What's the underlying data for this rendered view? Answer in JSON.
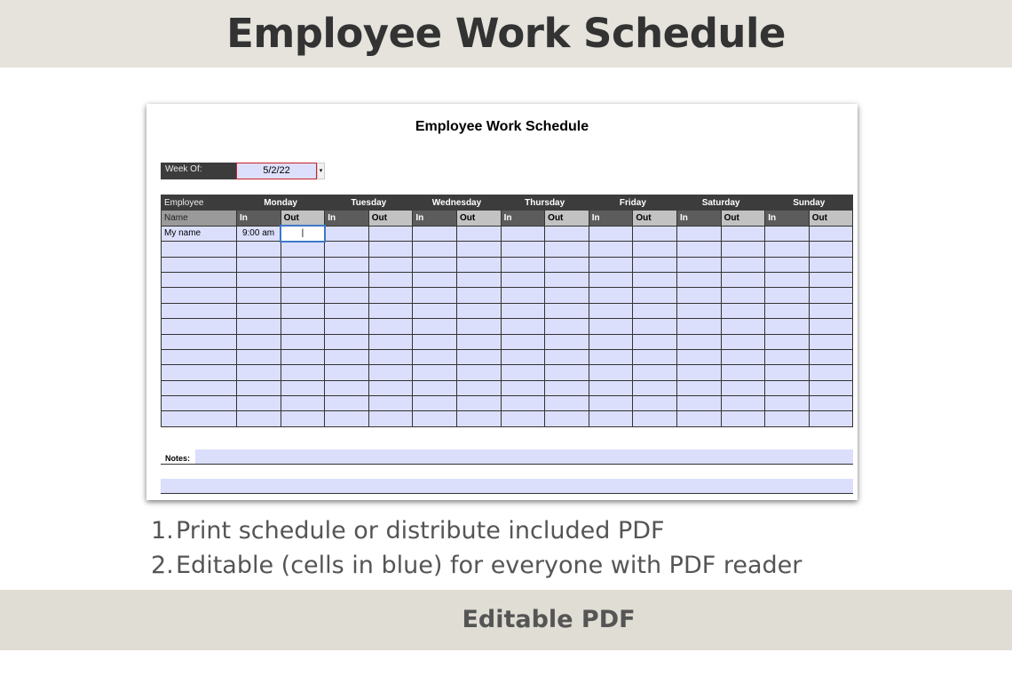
{
  "banner": {
    "title": "Employee Work Schedule"
  },
  "sheet": {
    "title": "Employee Work Schedule",
    "week_of_label": "Week Of:",
    "week_of_value": "5/2/22",
    "header": {
      "employee": "Employee",
      "name": "Name",
      "in": "In",
      "out": "Out",
      "days": [
        "Monday",
        "Tuesday",
        "Wednesday",
        "Thursday",
        "Friday",
        "Saturday",
        "Sunday"
      ]
    },
    "rows": [
      {
        "name": "My name",
        "monday_in": "9:00 am",
        "monday_out": "|"
      }
    ],
    "notes_label": "Notes:"
  },
  "features": [
    {
      "num": "1.",
      "text": "Print schedule or distribute included PDF"
    },
    {
      "num": "2.",
      "text": "Editable (cells in blue) for everyone with PDF reader"
    }
  ],
  "footer": {
    "label": "Editable PDF"
  },
  "colors": {
    "editable_cell": "#dbdffc",
    "header_dark": "#3c3c3c",
    "banner": "#e5e3dc"
  }
}
